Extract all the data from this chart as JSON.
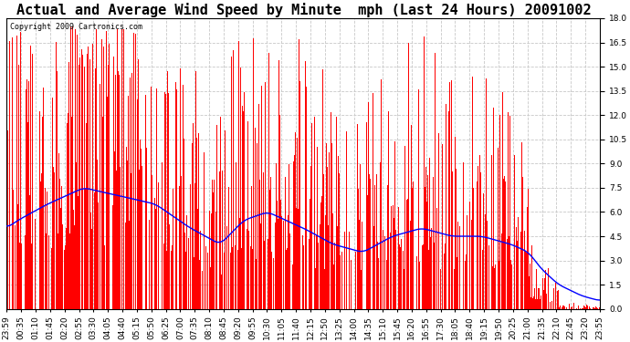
{
  "title": "Actual and Average Wind Speed by Minute  mph (Last 24 Hours) 20091002",
  "copyright": "Copyright 2009 Cartronics.com",
  "ylim": [
    0.0,
    18.0
  ],
  "yticks": [
    0.0,
    1.5,
    3.0,
    4.5,
    6.0,
    7.5,
    9.0,
    10.5,
    12.0,
    13.5,
    15.0,
    16.5,
    18.0
  ],
  "bar_color": "#FF0000",
  "line_color": "#0000FF",
  "bg_color": "#FFFFFF",
  "plot_bg_color": "#FFFFFF",
  "grid_color": "#C8C8C8",
  "title_fontsize": 11,
  "tick_fontsize": 6.5,
  "copyright_fontsize": 6,
  "n_minutes": 1440,
  "x_labels": [
    "23:59",
    "00:35",
    "01:10",
    "01:45",
    "02:20",
    "02:55",
    "03:30",
    "04:05",
    "04:40",
    "05:15",
    "05:50",
    "06:25",
    "07:00",
    "07:35",
    "08:10",
    "08:45",
    "09:20",
    "09:55",
    "10:30",
    "11:05",
    "11:40",
    "12:15",
    "12:50",
    "13:25",
    "14:00",
    "14:35",
    "15:10",
    "15:45",
    "16:20",
    "16:55",
    "17:30",
    "18:05",
    "18:40",
    "19:15",
    "19:50",
    "20:25",
    "21:00",
    "21:35",
    "22:10",
    "22:45",
    "23:20",
    "23:55"
  ]
}
